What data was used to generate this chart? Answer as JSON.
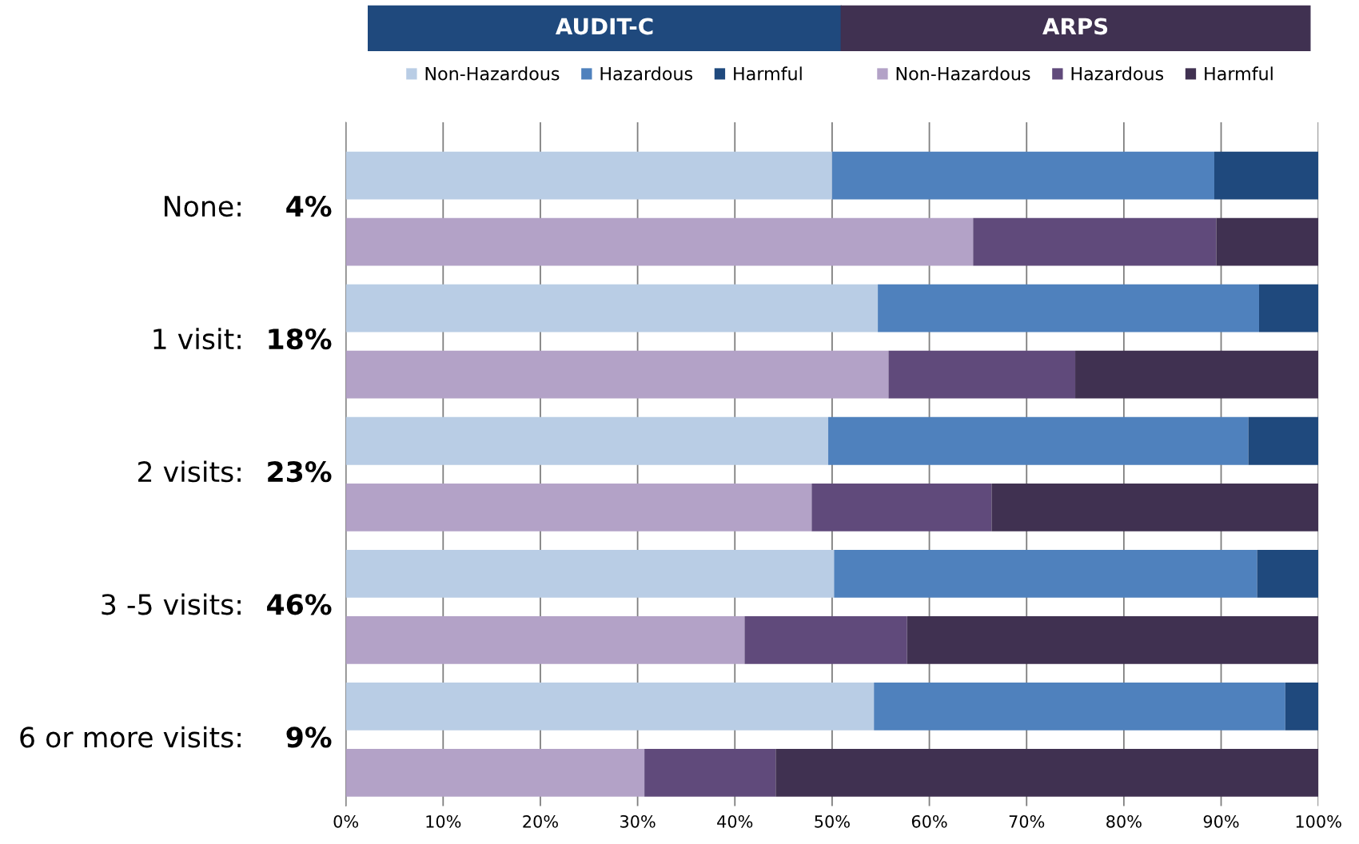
{
  "chart_data": {
    "type": "bar",
    "orientation": "horizontal",
    "stacked": true,
    "categories": [
      "None: 4%",
      null,
      "1 visit: 18%",
      null,
      "2 visits: 23%",
      null,
      "3 -5 visits: 46%",
      null,
      "6 or more visits: 9%",
      null
    ],
    "series": [
      {
        "name": "Non-Hazardous",
        "color": "#b9cde5",
        "values": [
          50.0,
          null,
          54.7,
          null,
          49.6,
          null,
          50.2,
          null,
          54.3,
          null
        ]
      },
      {
        "name": "Hazardous",
        "color": "#4f81bd",
        "values": [
          39.3,
          null,
          39.2,
          null,
          43.2,
          null,
          43.5,
          null,
          42.3,
          null
        ]
      },
      {
        "name": "Harmful",
        "color": "#1f497d",
        "values": [
          10.7,
          null,
          6.1,
          null,
          7.2,
          null,
          6.3,
          null,
          3.4,
          null
        ]
      },
      {
        "name": "Non-Hazardous",
        "color": "#b3a2c7",
        "values": [
          null,
          64.5,
          null,
          55.8,
          null,
          47.9,
          null,
          41.0,
          null,
          30.7
        ]
      },
      {
        "name": "Hazardous",
        "color": "#604a7b",
        "values": [
          null,
          25.0,
          null,
          19.2,
          null,
          18.5,
          null,
          16.7,
          null,
          13.5
        ]
      },
      {
        "name": "Harmful",
        "color": "#403151",
        "values": [
          null,
          10.5,
          null,
          25.0,
          null,
          33.6,
          null,
          42.3,
          null,
          55.8
        ]
      }
    ],
    "annotations": [
      "AUDIT-C",
      "ARPS"
    ],
    "xlim": [
      0,
      100
    ],
    "xticks": [
      {
        "value": 0,
        "label": "0%"
      },
      {
        "value": 10,
        "label": "10%"
      },
      {
        "value": 20,
        "label": "20%"
      },
      {
        "value": 30,
        "label": "30%"
      },
      {
        "value": 40,
        "label": "40%"
      },
      {
        "value": 50,
        "label": "50%"
      },
      {
        "value": 60,
        "label": "60%"
      },
      {
        "value": 70,
        "label": "70%"
      },
      {
        "value": 80,
        "label": "80%"
      },
      {
        "value": 90,
        "label": "90%"
      },
      {
        "value": 100,
        "label": "100%"
      }
    ],
    "grid": "x",
    "legend": "top"
  }
}
